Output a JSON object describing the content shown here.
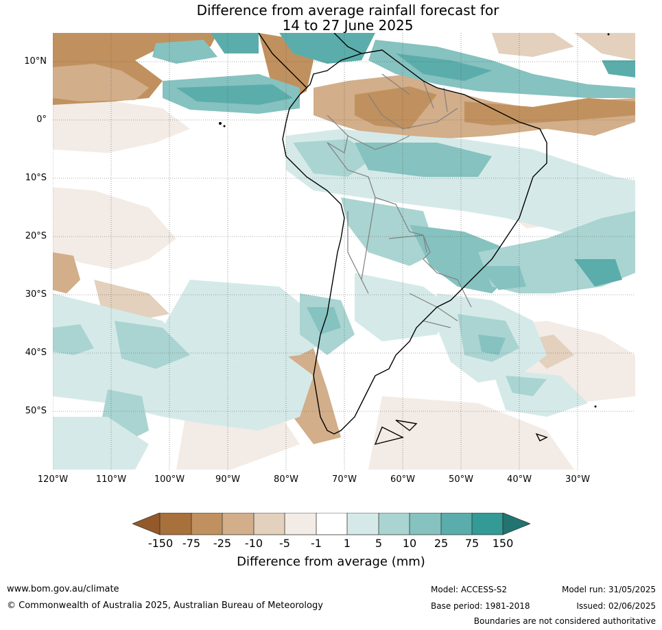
{
  "title": {
    "line1": "Difference from average rainfall forecast for",
    "line2": "14 to 27 June 2025"
  },
  "map": {
    "lat_labels": [
      "10°N",
      "0°",
      "10°S",
      "20°S",
      "30°S",
      "40°S",
      "50°S"
    ],
    "lon_labels": [
      "120°W",
      "110°W",
      "100°W",
      "90°W",
      "80°W",
      "70°W",
      "60°W",
      "50°W",
      "40°W",
      "30°W"
    ],
    "colors": {
      "dry_extreme": "#94592a",
      "dry_150": "#a8703a",
      "dry_75": "#c0915e",
      "dry_25": "#d2ae8a",
      "dry_10": "#e3d0bd",
      "dry_5": "#f3ebe5",
      "neutral": "#ffffff",
      "wet_5": "#d5eae8",
      "wet_10": "#a9d4d2",
      "wet_25": "#85c2c0",
      "wet_75": "#5badab",
      "wet_150": "#339a96",
      "wet_extreme": "#217470"
    }
  },
  "colorbar": {
    "ticks": [
      "-150",
      "-75",
      "-25",
      "-10",
      "-5",
      "-1",
      "1",
      "5",
      "10",
      "25",
      "75",
      "150"
    ],
    "title": "Difference from average (mm)"
  },
  "footer": {
    "website": "www.bom.gov.au/climate",
    "copyright": "© Commonwealth of Australia 2025, Australian Bureau of Meteorology",
    "model": "Model: ACCESS-S2",
    "base_period": "Base period: 1981-2018",
    "model_run": "Model run: 31/05/2025",
    "issued": "Issued: 02/06/2025",
    "disclaimer": "Boundaries are not considered authoritative"
  }
}
